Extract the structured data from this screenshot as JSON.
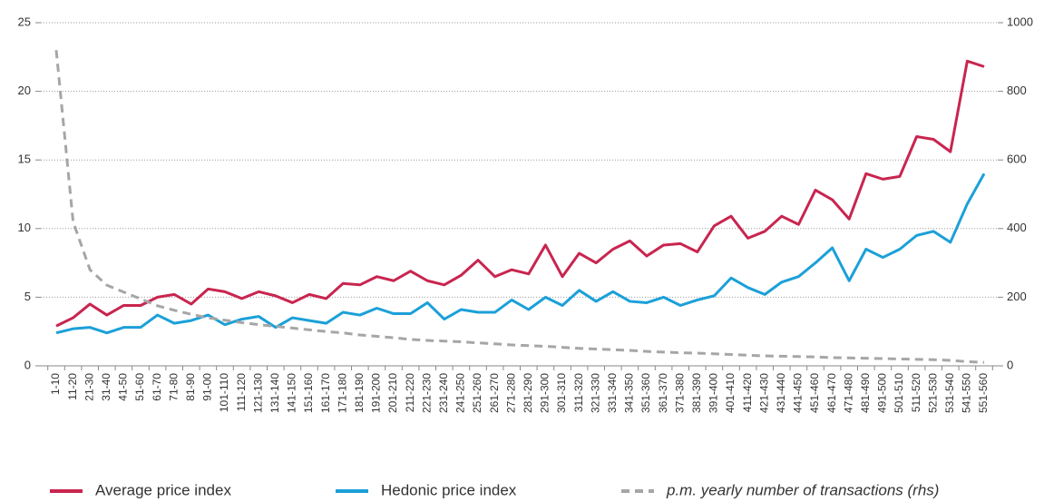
{
  "chart_data": {
    "type": "line",
    "categories": [
      "1-10",
      "11-20",
      "21-30",
      "31-40",
      "41-50",
      "51-60",
      "61-70",
      "71-80",
      "81-90",
      "91-00",
      "101-110",
      "111-120",
      "121-130",
      "131-140",
      "141-150",
      "151-160",
      "161-170",
      "171-180",
      "181-190",
      "191-200",
      "201-210",
      "211-220",
      "221-230",
      "231-240",
      "241-250",
      "251-260",
      "261-270",
      "271-280",
      "281-290",
      "291-300",
      "301-310",
      "311-320",
      "321-330",
      "331-340",
      "341-350",
      "351-360",
      "361-370",
      "371-380",
      "381-390",
      "391-400",
      "401-410",
      "411-420",
      "421-430",
      "431-440",
      "441-450",
      "451-460",
      "461-470",
      "471-480",
      "481-490",
      "491-500",
      "501-510",
      "511-520",
      "521-530",
      "531-540",
      "541-550",
      "551-560"
    ],
    "series": [
      {
        "name": "Average price index",
        "color": "#c8254f",
        "values": [
          2.9,
          3.5,
          4.5,
          3.7,
          4.4,
          4.4,
          5.0,
          5.2,
          4.5,
          5.6,
          5.4,
          4.9,
          5.4,
          5.1,
          4.6,
          5.2,
          4.9,
          6.0,
          5.9,
          6.5,
          6.2,
          6.9,
          6.2,
          5.9,
          6.6,
          7.7,
          6.5,
          7.0,
          6.7,
          8.8,
          6.5,
          8.2,
          7.5,
          8.5,
          9.1,
          8.0,
          8.8,
          8.9,
          8.3,
          10.2,
          10.9,
          9.3,
          9.8,
          10.9,
          10.3,
          12.8,
          12.1,
          10.7,
          14.0,
          13.6,
          13.8,
          16.7,
          16.5,
          15.6,
          22.2,
          21.8
        ]
      },
      {
        "name": "Hedonic price index",
        "color": "#1ba0d8",
        "values": [
          2.4,
          2.7,
          2.8,
          2.4,
          2.8,
          2.8,
          3.7,
          3.1,
          3.3,
          3.7,
          3.0,
          3.4,
          3.6,
          2.8,
          3.5,
          3.3,
          3.1,
          3.9,
          3.7,
          4.2,
          3.8,
          3.8,
          4.6,
          3.4,
          4.1,
          3.9,
          3.9,
          4.8,
          4.1,
          5.0,
          4.4,
          5.5,
          4.7,
          5.4,
          4.7,
          4.6,
          5.0,
          4.4,
          4.8,
          5.1,
          6.4,
          5.7,
          5.2,
          6.1,
          6.5,
          7.5,
          8.6,
          6.2,
          8.5,
          7.9,
          8.5,
          9.5,
          9.8,
          9.0,
          11.8,
          14.0
        ]
      },
      {
        "name": "p.m. yearly number of transactions (rhs)",
        "color": "#a6a6a6",
        "axis": "y2",
        "line_style": "dashed",
        "values": [
          920,
          420,
          280,
          235,
          215,
          195,
          175,
          162,
          150,
          140,
          133,
          126,
          120,
          115,
          110,
          105,
          100,
          96,
          90,
          86,
          82,
          77,
          74,
          72,
          70,
          67,
          64,
          61,
          59,
          57,
          54,
          51,
          49,
          47,
          45,
          42,
          40,
          38,
          37,
          35,
          33,
          31,
          29,
          28,
          27,
          26,
          24,
          23,
          22,
          21,
          20,
          19,
          18,
          16,
          12,
          10
        ]
      }
    ],
    "ylim": [
      0,
      25
    ],
    "yticks": [
      0,
      5,
      10,
      15,
      20,
      25
    ],
    "y2lim": [
      0,
      1000
    ],
    "y2ticks": [
      0,
      200,
      400,
      600,
      800,
      1000
    ],
    "grid": true
  }
}
